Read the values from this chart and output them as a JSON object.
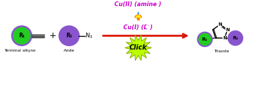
{
  "bg_color": "#ffffff",
  "fig_width": 3.78,
  "fig_height": 1.31,
  "dpi": 100,
  "green_color": "#22cc22",
  "purple_color": "#8855cc",
  "yellow_green": "#bbff00",
  "blue_arrow_color": "#4499ff",
  "red_arrow_color": "#dd1100",
  "cu2_text": "Cu(II) (amine )",
  "cu1_text": "Cu(I) (L",
  "click_text": "Click",
  "terminal_alkyne_text": "Terminal alkyne",
  "azide_text": "Azide",
  "triazole_text": "Triazole",
  "r1_text": "R₁",
  "r2_text": "R₂",
  "cu_text_color": "#cc00cc",
  "black_color": "#000000",
  "red_color": "#dd1100"
}
